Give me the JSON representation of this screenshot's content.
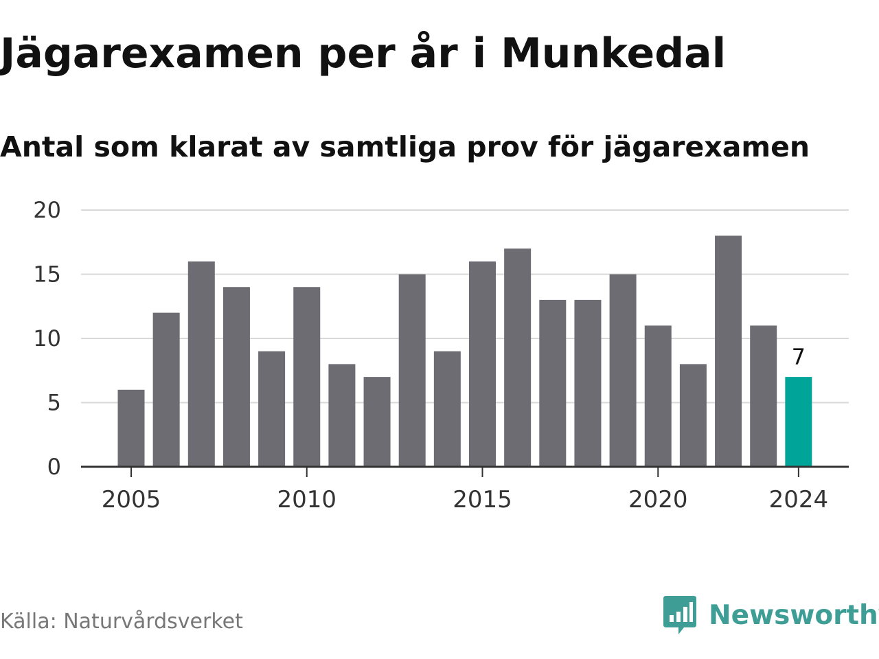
{
  "header": {
    "title": "Jägarexamen per år i Munkedal",
    "subtitle": "Antal som klarat av samtliga prov för jägarexamen"
  },
  "footer": {
    "source": "Källa: Naturvårdsverket",
    "brand": "Newsworthy",
    "brand_icon": "newsworthy-logo-icon"
  },
  "colors": {
    "bar": "#6d6c73",
    "highlight": "#00a499",
    "grid": "#d9d9d9",
    "axis": "#333333",
    "brand": "#3e9e95"
  },
  "chart_data": {
    "type": "bar",
    "categories": [
      "2005",
      "2006",
      "2007",
      "2008",
      "2009",
      "2010",
      "2011",
      "2012",
      "2013",
      "2014",
      "2015",
      "2016",
      "2017",
      "2018",
      "2019",
      "2020",
      "2021",
      "2022",
      "2023",
      "2024"
    ],
    "values": [
      6,
      12,
      16,
      14,
      9,
      14,
      8,
      7,
      15,
      9,
      16,
      17,
      13,
      13,
      15,
      11,
      8,
      18,
      11,
      7
    ],
    "highlight_category": "2024",
    "data_labels": [
      {
        "category": "2024",
        "text": "7"
      }
    ],
    "x_tick_labels": [
      "2005",
      "2010",
      "2015",
      "2020",
      "2024"
    ],
    "y_ticks": [
      0,
      5,
      10,
      15,
      20
    ],
    "ylim": [
      0,
      20
    ],
    "xlabel": "",
    "ylabel": "",
    "grid": true
  }
}
